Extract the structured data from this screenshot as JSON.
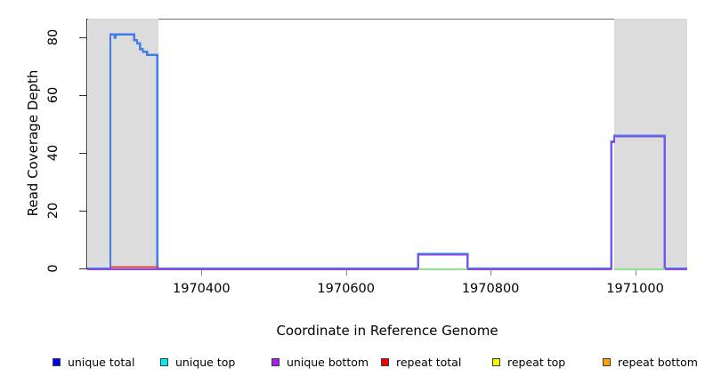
{
  "chart_data": {
    "type": "line",
    "title": "",
    "xlabel": "Coordinate in Reference Genome",
    "ylabel": "Read Coverage Depth",
    "xlim": [
      1970242,
      1971072
    ],
    "ylim": [
      0,
      86.5
    ],
    "grid": false,
    "x_ticks": [
      {
        "value": 1970400,
        "label": "1970400"
      },
      {
        "value": 1970600,
        "label": "1970600"
      },
      {
        "value": 1970800,
        "label": "1970800"
      },
      {
        "value": 1971000,
        "label": "1971000"
      }
    ],
    "y_ticks": [
      {
        "value": 0,
        "label": "0"
      },
      {
        "value": 20,
        "label": "20"
      },
      {
        "value": 40,
        "label": "40"
      },
      {
        "value": 60,
        "label": "60"
      },
      {
        "value": 80,
        "label": "80"
      }
    ],
    "shaded_regions": [
      {
        "x1": 1970243,
        "x2": 1970341
      },
      {
        "x1": 1970971,
        "x2": 1971072
      }
    ],
    "colors": {
      "shaded_fill": "#dcdcdc",
      "plot_border_top": "#6e6e6e",
      "axis_line": "#333333",
      "x_tick": "#888888"
    },
    "series": [
      {
        "name": "unique total",
        "plot_color": "#417cec",
        "segments": [
          [
            [
              1970242,
              0
            ],
            [
              1970274,
              0
            ],
            [
              1970274,
              81
            ],
            [
              1970280,
              81
            ],
            [
              1970280,
              80
            ],
            [
              1970281,
              80
            ],
            [
              1970281,
              81
            ],
            [
              1970307,
              81
            ],
            [
              1970307,
              79
            ],
            [
              1970311,
              79
            ],
            [
              1970311,
              78
            ],
            [
              1970315,
              78
            ],
            [
              1970315,
              76
            ],
            [
              1970319,
              76
            ],
            [
              1970319,
              75
            ],
            [
              1970325,
              75
            ],
            [
              1970325,
              74
            ],
            [
              1970339,
              74
            ],
            [
              1970339,
              0
            ],
            [
              1970700,
              0
            ],
            [
              1970700,
              5
            ],
            [
              1970768,
              5
            ],
            [
              1970768,
              0
            ],
            [
              1970967,
              0
            ],
            [
              1970967,
              44
            ],
            [
              1970971,
              44
            ],
            [
              1970971,
              46
            ],
            [
              1971041,
              46
            ],
            [
              1971041,
              0
            ],
            [
              1971072,
              0
            ]
          ]
        ]
      },
      {
        "name": "unique bottom",
        "plot_color": "#8a4be8",
        "segments": [
          [
            [
              1970242,
              0
            ],
            [
              1970700,
              0
            ],
            [
              1970700,
              5
            ],
            [
              1970768,
              5
            ],
            [
              1970768,
              0
            ],
            [
              1970967,
              0
            ],
            [
              1970967,
              44
            ],
            [
              1970971,
              44
            ],
            [
              1970971,
              46
            ],
            [
              1971041,
              46
            ],
            [
              1971041,
              0
            ],
            [
              1971072,
              0
            ]
          ]
        ]
      },
      {
        "name": "unique top",
        "plot_color": "#8fe08f",
        "segments": [
          [
            [
              1970700,
              0
            ],
            [
              1970768,
              0
            ]
          ],
          [
            [
              1970971,
              0
            ],
            [
              1971041,
              0
            ]
          ]
        ]
      },
      {
        "name": "repeat total",
        "plot_color": "#e04343",
        "segments": [
          [
            [
              1970274,
              0
            ],
            [
              1970341,
              0
            ]
          ]
        ]
      }
    ],
    "legend": [
      {
        "label": "unique total",
        "color": "#0000f5"
      },
      {
        "label": "unique top",
        "color": "#00eeee"
      },
      {
        "label": "unique bottom",
        "color": "#a21ff0"
      },
      {
        "label": "repeat total",
        "color": "#f00000"
      },
      {
        "label": "repeat top",
        "color": "#f5f500"
      },
      {
        "label": "repeat bottom",
        "color": "#f5a300"
      }
    ]
  }
}
